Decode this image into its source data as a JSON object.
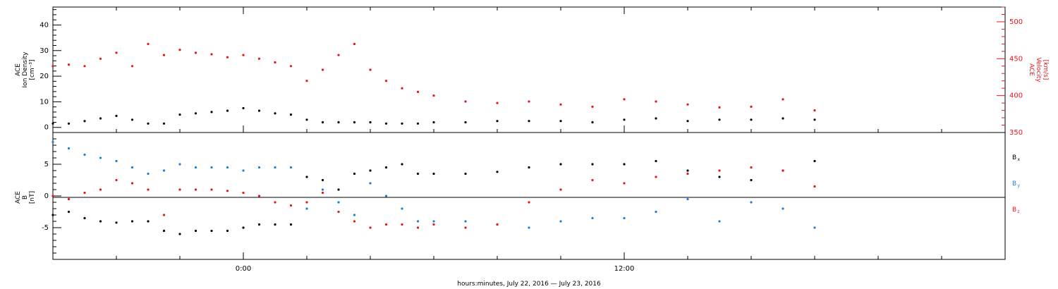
{
  "colors": {
    "black": "#000000",
    "red": "#e8141b",
    "blue": "#1b7fd6"
  },
  "xlabel": "hours:minutes, July 22, 2016 — July 23, 2016",
  "chart_data": [
    {
      "type": "scatter",
      "panel": "plasma",
      "ylabel_lines": [
        "ACE",
        "Ion Density",
        "[cm⁻³]"
      ],
      "y2label_lines": [
        "ACE",
        "Velocity",
        "[km/s]"
      ],
      "ylim": [
        -2,
        47
      ],
      "y2lim": [
        350,
        520
      ],
      "yticks": [
        0,
        10,
        20,
        30,
        40
      ],
      "y2ticks": [
        350,
        400,
        450,
        500
      ],
      "xlim_hours": [
        -6,
        24
      ],
      "series": [
        {
          "axis": "left",
          "color": "#000000",
          "x": [
            -6.0,
            -5.5,
            -5.0,
            -4.5,
            -4.0,
            -3.5,
            -3.0,
            -2.5,
            -2.0,
            -1.5,
            -1.0,
            -0.5,
            0.0,
            0.5,
            1.0,
            1.5,
            2.0,
            2.5,
            3.0,
            3.5,
            4.0,
            4.5,
            5.0,
            5.5,
            6.0,
            7.0,
            8.0,
            9.0,
            10.0,
            11.0,
            12.0,
            13.0,
            14.0,
            15.0,
            16.0,
            17.0,
            18.0
          ],
          "values": [
            1.5,
            1.5,
            2.5,
            3.5,
            4.5,
            3,
            1.5,
            1.5,
            5,
            5.5,
            6,
            6.5,
            7.5,
            6.5,
            5.5,
            5,
            3,
            2,
            2,
            2,
            2,
            1.5,
            1.5,
            1.5,
            2,
            2,
            2.5,
            2.5,
            2.5,
            2,
            3,
            3.5,
            2.5,
            3,
            3,
            3.5,
            3
          ]
        },
        {
          "axis": "right",
          "color": "#e8141b",
          "x": [
            -6.0,
            -5.5,
            -5.0,
            -4.5,
            -4.0,
            -3.5,
            -3.0,
            -2.5,
            -2.0,
            -1.5,
            -1.0,
            -0.5,
            0.0,
            0.5,
            1.0,
            1.5,
            2.0,
            2.5,
            3.0,
            3.5,
            4.0,
            4.5,
            5.0,
            5.5,
            6.0,
            7.0,
            8.0,
            9.0,
            10.0,
            11.0,
            12.0,
            13.0,
            14.0,
            15.0,
            16.0,
            17.0,
            18.0
          ],
          "values": [
            440,
            442,
            440,
            450,
            458,
            440,
            470,
            455,
            462,
            458,
            456,
            452,
            455,
            450,
            445,
            440,
            420,
            435,
            455,
            470,
            435,
            420,
            410,
            405,
            400,
            392,
            390,
            392,
            388,
            385,
            395,
            392,
            388,
            384,
            385,
            395,
            380
          ]
        }
      ]
    },
    {
      "type": "scatter",
      "panel": "magnetic-field",
      "ylabel_lines": [
        "ACE",
        "B",
        "[nT]"
      ],
      "ylim": [
        -10,
        10
      ],
      "yticks": [
        -5,
        0,
        5
      ],
      "xlim_hours": [
        -6,
        24
      ],
      "xticks": [
        {
          "value": 0,
          "label": "0:00"
        },
        {
          "value": 12,
          "label": "12:00"
        }
      ],
      "legend": [
        "Bx",
        "By",
        "Bz"
      ],
      "series": [
        {
          "name": "Bx",
          "color": "#000000",
          "x": [
            -6.0,
            -5.5,
            -5.0,
            -4.5,
            -4.0,
            -3.5,
            -3.0,
            -2.5,
            -2.0,
            -1.5,
            -1.0,
            -0.5,
            0.0,
            0.5,
            1.0,
            1.5,
            2.0,
            2.5,
            3.0,
            3.5,
            4.0,
            4.5,
            5.0,
            5.5,
            6.0,
            7.0,
            8.0,
            9.0,
            10.0,
            11.0,
            12.0,
            13.0,
            14.0,
            15.0,
            16.0,
            17.0,
            18.0
          ],
          "values": [
            -3,
            -2.5,
            -3.5,
            -4,
            -4.2,
            -4,
            -4,
            -5.5,
            -6,
            -5.5,
            -5.5,
            -5.5,
            -5,
            -4.5,
            -4.5,
            -4.5,
            3,
            2.5,
            1,
            3.5,
            4,
            4.5,
            5,
            3.5,
            3.5,
            3.5,
            3.8,
            4.5,
            5,
            5,
            5,
            5.5,
            4,
            3,
            2.5,
            4,
            5.5
          ]
        },
        {
          "name": "By",
          "color": "#1b7fd6",
          "x": [
            -6.0,
            -5.5,
            -5.0,
            -4.5,
            -4.0,
            -3.5,
            -3.0,
            -2.5,
            -2.0,
            -1.5,
            -1.0,
            -0.5,
            0.0,
            0.5,
            1.0,
            1.5,
            2.0,
            2.5,
            3.0,
            3.5,
            4.0,
            4.5,
            5.0,
            5.5,
            6.0,
            7.0,
            8.0,
            9.0,
            10.0,
            11.0,
            12.0,
            13.0,
            14.0,
            15.0,
            16.0,
            17.0,
            18.0
          ],
          "values": [
            8.5,
            7.5,
            6.5,
            6,
            5.5,
            4.5,
            3.5,
            4,
            5,
            4.5,
            4.5,
            4.5,
            4,
            4.5,
            4.5,
            4.5,
            -2,
            1,
            -1,
            -3,
            2,
            0,
            -2,
            -4,
            -4,
            -4,
            -4.5,
            -5,
            -4,
            -3.5,
            -3.5,
            -2.5,
            -0.5,
            -4,
            -1,
            -2,
            -5
          ]
        },
        {
          "name": "Bz",
          "color": "#e8141b",
          "x": [
            -6.0,
            -5.5,
            -5.0,
            -4.5,
            -4.0,
            -3.5,
            -3.0,
            -2.5,
            -2.0,
            -1.5,
            -1.0,
            -0.5,
            0.0,
            0.5,
            1.0,
            1.5,
            2.0,
            2.5,
            3.0,
            3.5,
            4.0,
            4.5,
            5.0,
            5.5,
            6.0,
            7.0,
            8.0,
            9.0,
            10.0,
            11.0,
            12.0,
            13.0,
            14.0,
            15.0,
            16.0,
            17.0,
            18.0
          ],
          "values": [
            0,
            -0.5,
            0.5,
            1,
            2.5,
            2,
            1,
            -3,
            1,
            1,
            1,
            0.8,
            0.5,
            0,
            -1,
            -1.5,
            -1,
            0.5,
            -2.5,
            -4,
            -5,
            -4.5,
            -4.5,
            -5,
            -4.5,
            -5,
            -4.5,
            -1,
            1,
            2.5,
            2,
            3,
            3.5,
            4,
            4.5,
            4,
            1.5
          ]
        }
      ]
    }
  ]
}
